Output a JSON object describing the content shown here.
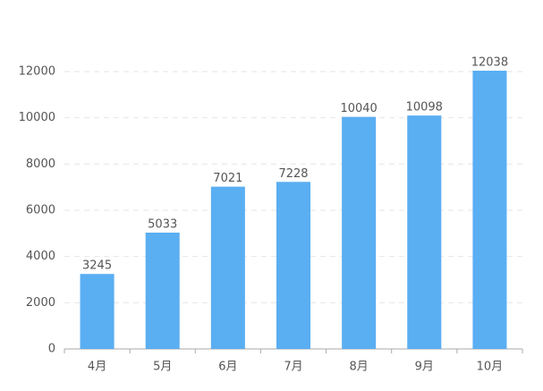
{
  "chart_data": {
    "type": "bar",
    "categories": [
      "4月",
      "5月",
      "6月",
      "7月",
      "8月",
      "9月",
      "10月"
    ],
    "values": [
      3245,
      5033,
      7021,
      7228,
      10040,
      10098,
      12038
    ],
    "color": "#5aaef2",
    "ylim": [
      0,
      12000
    ],
    "yticks": [
      0,
      2000,
      4000,
      6000,
      8000,
      10000,
      12000
    ],
    "grid": true
  }
}
